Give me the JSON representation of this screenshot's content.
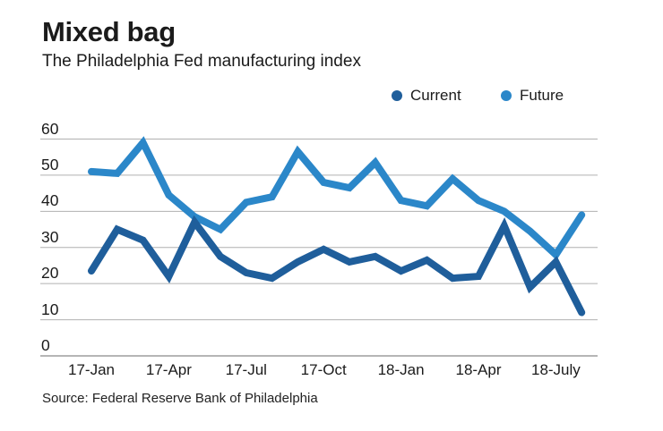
{
  "chart_data": {
    "type": "line",
    "title": "Mixed bag",
    "subtitle": "The Philadelphia Fed manufacturing index",
    "source": "Source: Federal Reserve Bank of Philadelphia",
    "grid": "horizontal",
    "legend_position": "top-right",
    "ylim": [
      0,
      60
    ],
    "y_ticks": [
      0,
      10,
      20,
      30,
      40,
      50,
      60
    ],
    "x": [
      "17-Jan",
      "17-Feb",
      "17-Mar",
      "17-Apr",
      "17-May",
      "17-Jun",
      "17-Jul",
      "17-Aug",
      "17-Sep",
      "17-Oct",
      "17-Nov",
      "17-Dec",
      "18-Jan",
      "18-Feb",
      "18-Mar",
      "18-Apr",
      "18-May",
      "18-Jun",
      "18-July",
      "18-Aug"
    ],
    "x_tick_indices": [
      0,
      3,
      6,
      9,
      12,
      15,
      18
    ],
    "x_tick_labels": [
      "17-Jan",
      "17-Apr",
      "17-Jul",
      "17-Oct",
      "18-Jan",
      "18-Apr",
      "18-July"
    ],
    "series": [
      {
        "name": "Future",
        "color": "#2b87c9",
        "values": [
          51,
          50.5,
          59,
          44.5,
          38.5,
          35,
          42.5,
          44,
          56.5,
          48,
          46.5,
          53.5,
          43,
          41.5,
          49,
          43,
          40,
          34.5,
          28,
          39
        ]
      },
      {
        "name": "Current",
        "color": "#1f5e9b",
        "values": [
          23.5,
          35,
          32,
          22,
          37,
          27.5,
          23,
          21.5,
          26,
          29.5,
          26,
          27.5,
          23.5,
          26.5,
          21.5,
          22,
          36,
          19,
          26,
          12
        ]
      }
    ],
    "colors": {
      "grid": "#b0b0b0",
      "axis": "#8a8a8a",
      "text": "#1b1b1b"
    }
  }
}
